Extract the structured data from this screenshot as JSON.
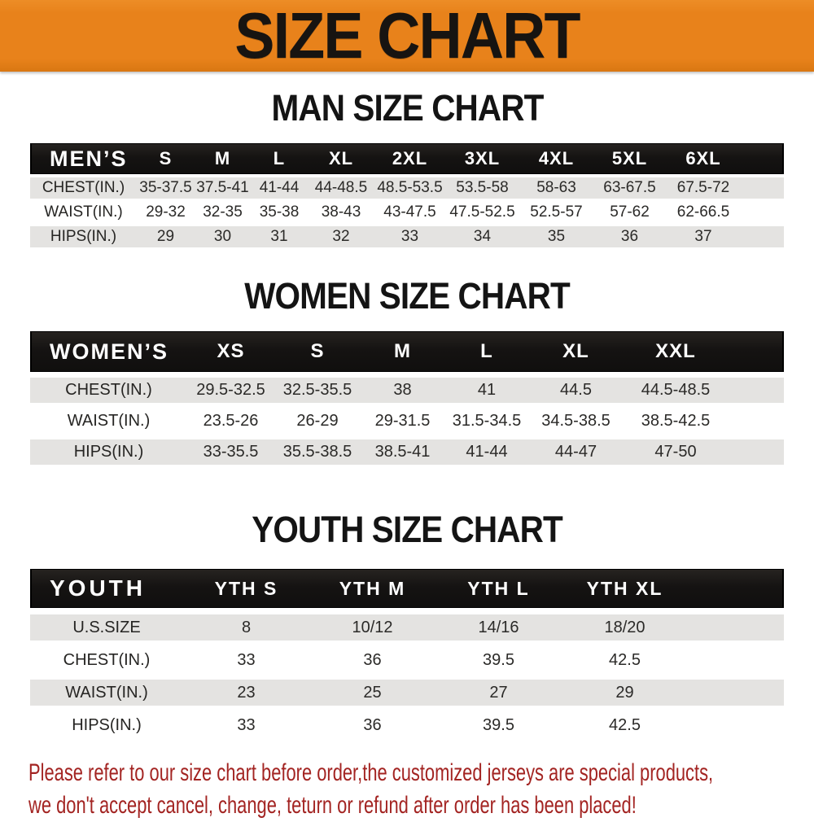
{
  "banner": {
    "title": "SIZE CHART"
  },
  "sections": [
    {
      "heading": "MAN SIZE CHART",
      "table": {
        "label": "MEN’S",
        "columns": [
          "S",
          "M",
          "L",
          "XL",
          "2XL",
          "3XL",
          "4XL",
          "5XL",
          "6XL"
        ],
        "rows": [
          {
            "label": "CHEST(IN.)",
            "values": [
              "35-37.5",
              "37.5-41",
              "41-44",
              "44-48.5",
              "48.5-53.5",
              "53.5-58",
              "58-63",
              "63-67.5",
              "67.5-72"
            ]
          },
          {
            "label": "WAIST(IN.)",
            "values": [
              "29-32",
              "32-35",
              "35-38",
              "38-43",
              "43-47.5",
              "47.5-52.5",
              "52.5-57",
              "57-62",
              "62-66.5"
            ]
          },
          {
            "label": "HIPS(IN.)",
            "values": [
              "29",
              "30",
              "31",
              "32",
              "33",
              "34",
              "35",
              "36",
              "37"
            ]
          }
        ]
      }
    },
    {
      "heading": "WOMEN SIZE CHART",
      "table": {
        "label": "WOMEN’S",
        "columns": [
          "XS",
          "S",
          "M",
          "L",
          "XL",
          "XXL"
        ],
        "rows": [
          {
            "label": "CHEST(IN.)",
            "values": [
              "29.5-32.5",
              "32.5-35.5",
              "38",
              "41",
              "44.5",
              "44.5-48.5"
            ]
          },
          {
            "label": "WAIST(IN.)",
            "values": [
              "23.5-26",
              "26-29",
              "29-31.5",
              "31.5-34.5",
              "34.5-38.5",
              "38.5-42.5"
            ]
          },
          {
            "label": "HIPS(IN.)",
            "values": [
              "33-35.5",
              "35.5-38.5",
              "38.5-41",
              "41-44",
              "44-47",
              "47-50"
            ]
          }
        ]
      }
    },
    {
      "heading": "YOUTH SIZE CHART",
      "table": {
        "label": "YOUTH",
        "columns": [
          "YTH S",
          "YTH M",
          "YTH L",
          "YTH XL"
        ],
        "rows": [
          {
            "label": "U.S.SIZE",
            "values": [
              "8",
              "10/12",
              "14/16",
              "18/20"
            ]
          },
          {
            "label": "CHEST(IN.)",
            "values": [
              "33",
              "36",
              "39.5",
              "42.5"
            ]
          },
          {
            "label": "WAIST(IN.)",
            "values": [
              "23",
              "25",
              "27",
              "29"
            ]
          },
          {
            "label": "HIPS(IN.)",
            "values": [
              "33",
              "36",
              "39.5",
              "42.5"
            ]
          }
        ]
      }
    }
  ],
  "footer": {
    "lines": [
      "Please refer to our size chart before order,the customized jerseys are special products,",
      "we don't accept cancel, change, teturn or refund after order has been placed!"
    ]
  },
  "colors": {
    "banner_bg": "#e8821b",
    "banner_text": "#171411",
    "header_bar_bg": "#151312",
    "header_bar_text": "#ffffff",
    "row_stripe": "#e4e3e1",
    "heading_text": "#141414",
    "footer_text": "#a32422"
  }
}
